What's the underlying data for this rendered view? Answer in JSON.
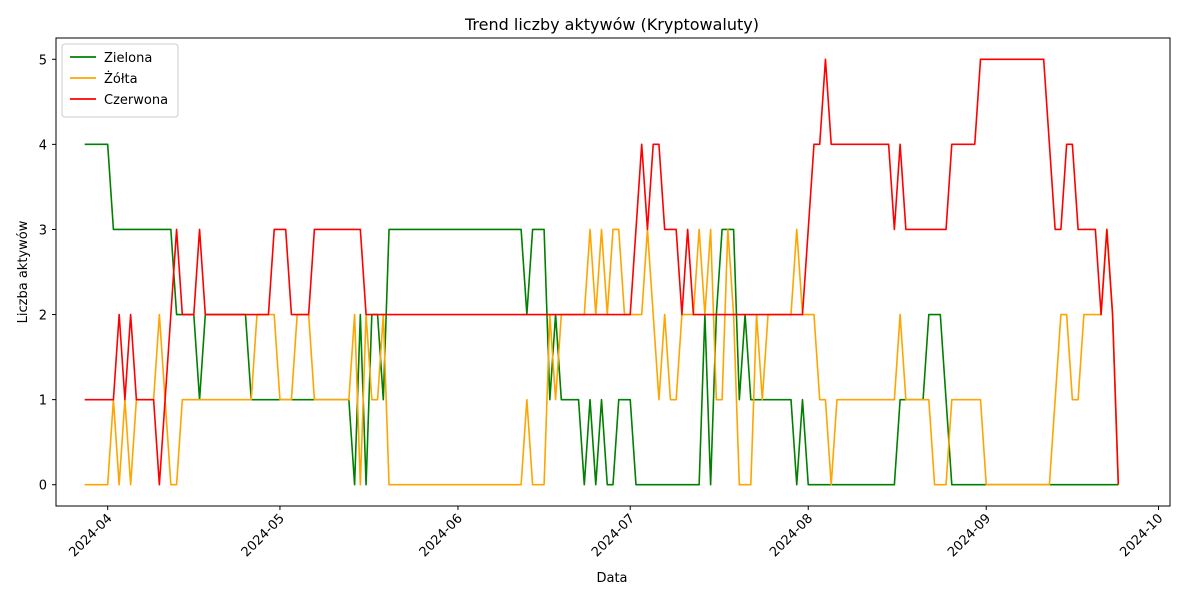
{
  "chart_data": {
    "type": "line",
    "title": "Trend liczby aktywów (Kryptowaluty)",
    "xlabel": "Data",
    "ylabel": "Liczba aktywów",
    "xlim": [
      "2024-03-23",
      "2024-10-03"
    ],
    "ylim": [
      -0.25,
      5.25
    ],
    "y_ticks": [
      0,
      1,
      2,
      3,
      4,
      5
    ],
    "x_ticks": [
      {
        "date": "2024-04-01",
        "label": "2024-04"
      },
      {
        "date": "2024-05-01",
        "label": "2024-05"
      },
      {
        "date": "2024-06-01",
        "label": "2024-06"
      },
      {
        "date": "2024-07-01",
        "label": "2024-07"
      },
      {
        "date": "2024-08-01",
        "label": "2024-08"
      },
      {
        "date": "2024-09-01",
        "label": "2024-09"
      },
      {
        "date": "2024-10-01",
        "label": "2024-10"
      }
    ],
    "grid": false,
    "legend_position": "top-left",
    "series": [
      {
        "name": "Zielona",
        "color": "#008000",
        "points": [
          [
            "2024-03-28",
            4
          ],
          [
            "2024-04-01",
            4
          ],
          [
            "2024-04-02",
            3
          ],
          [
            "2024-04-12",
            3
          ],
          [
            "2024-04-13",
            2
          ],
          [
            "2024-04-16",
            2
          ],
          [
            "2024-04-17",
            1
          ],
          [
            "2024-04-18",
            2
          ],
          [
            "2024-04-25",
            2
          ],
          [
            "2024-04-26",
            1
          ],
          [
            "2024-05-06",
            1
          ],
          [
            "2024-05-12",
            1
          ],
          [
            "2024-05-13",
            1
          ],
          [
            "2024-05-14",
            0
          ],
          [
            "2024-05-15",
            2
          ],
          [
            "2024-05-16",
            0
          ],
          [
            "2024-05-17",
            2
          ],
          [
            "2024-05-18",
            2
          ],
          [
            "2024-05-19",
            1
          ],
          [
            "2024-05-20",
            3
          ],
          [
            "2024-06-12",
            3
          ],
          [
            "2024-06-13",
            2
          ],
          [
            "2024-06-14",
            3
          ],
          [
            "2024-06-16",
            3
          ],
          [
            "2024-06-17",
            1
          ],
          [
            "2024-06-18",
            2
          ],
          [
            "2024-06-19",
            1
          ],
          [
            "2024-06-22",
            1
          ],
          [
            "2024-06-23",
            0
          ],
          [
            "2024-06-24",
            1
          ],
          [
            "2024-06-25",
            0
          ],
          [
            "2024-06-26",
            1
          ],
          [
            "2024-06-27",
            0
          ],
          [
            "2024-06-28",
            0
          ],
          [
            "2024-06-29",
            1
          ],
          [
            "2024-07-01",
            1
          ],
          [
            "2024-07-02",
            0
          ],
          [
            "2024-07-13",
            0
          ],
          [
            "2024-07-14",
            2
          ],
          [
            "2024-07-15",
            0
          ],
          [
            "2024-07-16",
            2
          ],
          [
            "2024-07-17",
            3
          ],
          [
            "2024-07-19",
            3
          ],
          [
            "2024-07-20",
            1
          ],
          [
            "2024-07-21",
            2
          ],
          [
            "2024-07-22",
            1
          ],
          [
            "2024-07-29",
            1
          ],
          [
            "2024-07-30",
            0
          ],
          [
            "2024-07-31",
            1
          ],
          [
            "2024-08-01",
            0
          ],
          [
            "2024-08-16",
            0
          ],
          [
            "2024-08-17",
            1
          ],
          [
            "2024-08-21",
            1
          ],
          [
            "2024-08-22",
            2
          ],
          [
            "2024-08-24",
            2
          ],
          [
            "2024-08-26",
            0
          ],
          [
            "2024-09-24",
            0
          ]
        ]
      },
      {
        "name": "Żółta",
        "color": "#ffa500",
        "points": [
          [
            "2024-03-28",
            0
          ],
          [
            "2024-04-01",
            0
          ],
          [
            "2024-04-02",
            1
          ],
          [
            "2024-04-03",
            0
          ],
          [
            "2024-04-04",
            1
          ],
          [
            "2024-04-05",
            0
          ],
          [
            "2024-04-06",
            1
          ],
          [
            "2024-04-09",
            1
          ],
          [
            "2024-04-10",
            2
          ],
          [
            "2024-04-11",
            1
          ],
          [
            "2024-04-12",
            0
          ],
          [
            "2024-04-13",
            0
          ],
          [
            "2024-04-14",
            1
          ],
          [
            "2024-04-26",
            1
          ],
          [
            "2024-04-27",
            2
          ],
          [
            "2024-04-30",
            2
          ],
          [
            "2024-05-01",
            1
          ],
          [
            "2024-05-03",
            1
          ],
          [
            "2024-05-04",
            2
          ],
          [
            "2024-05-06",
            2
          ],
          [
            "2024-05-07",
            1
          ],
          [
            "2024-05-13",
            1
          ],
          [
            "2024-05-14",
            2
          ],
          [
            "2024-05-15",
            0
          ],
          [
            "2024-05-16",
            2
          ],
          [
            "2024-05-17",
            1
          ],
          [
            "2024-05-18",
            1
          ],
          [
            "2024-05-19",
            2
          ],
          [
            "2024-05-20",
            0
          ],
          [
            "2024-06-12",
            0
          ],
          [
            "2024-06-13",
            1
          ],
          [
            "2024-06-14",
            0
          ],
          [
            "2024-06-16",
            0
          ],
          [
            "2024-06-17",
            2
          ],
          [
            "2024-06-18",
            1
          ],
          [
            "2024-06-19",
            2
          ],
          [
            "2024-06-23",
            2
          ],
          [
            "2024-06-24",
            3
          ],
          [
            "2024-06-25",
            2
          ],
          [
            "2024-06-26",
            3
          ],
          [
            "2024-06-27",
            2
          ],
          [
            "2024-06-28",
            3
          ],
          [
            "2024-06-29",
            3
          ],
          [
            "2024-06-30",
            2
          ],
          [
            "2024-07-03",
            2
          ],
          [
            "2024-07-04",
            3
          ],
          [
            "2024-07-06",
            1
          ],
          [
            "2024-07-07",
            2
          ],
          [
            "2024-07-08",
            1
          ],
          [
            "2024-07-09",
            1
          ],
          [
            "2024-07-10",
            2
          ],
          [
            "2024-07-12",
            2
          ],
          [
            "2024-07-13",
            3
          ],
          [
            "2024-07-14",
            2
          ],
          [
            "2024-07-15",
            3
          ],
          [
            "2024-07-16",
            1
          ],
          [
            "2024-07-17",
            1
          ],
          [
            "2024-07-18",
            3
          ],
          [
            "2024-07-19",
            2
          ],
          [
            "2024-07-20",
            0
          ],
          [
            "2024-07-22",
            0
          ],
          [
            "2024-07-23",
            2
          ],
          [
            "2024-07-24",
            1
          ],
          [
            "2024-07-25",
            2
          ],
          [
            "2024-07-29",
            2
          ],
          [
            "2024-07-30",
            3
          ],
          [
            "2024-07-31",
            2
          ],
          [
            "2024-08-02",
            2
          ],
          [
            "2024-08-03",
            1
          ],
          [
            "2024-08-04",
            1
          ],
          [
            "2024-08-05",
            0
          ],
          [
            "2024-08-06",
            1
          ],
          [
            "2024-08-16",
            1
          ],
          [
            "2024-08-17",
            2
          ],
          [
            "2024-08-18",
            1
          ],
          [
            "2024-08-22",
            1
          ],
          [
            "2024-08-23",
            0
          ],
          [
            "2024-08-25",
            0
          ],
          [
            "2024-08-26",
            1
          ],
          [
            "2024-08-31",
            1
          ],
          [
            "2024-09-01",
            0
          ],
          [
            "2024-09-12",
            0
          ],
          [
            "2024-09-13",
            1
          ],
          [
            "2024-09-14",
            2
          ],
          [
            "2024-09-15",
            2
          ],
          [
            "2024-09-16",
            1
          ],
          [
            "2024-09-17",
            1
          ],
          [
            "2024-09-18",
            2
          ],
          [
            "2024-09-21",
            2
          ],
          [
            "2024-09-22",
            3
          ],
          [
            "2024-09-23",
            2
          ],
          [
            "2024-09-24",
            0
          ]
        ]
      },
      {
        "name": "Czerwona",
        "color": "#ff0000",
        "points": [
          [
            "2024-03-28",
            1
          ],
          [
            "2024-04-01",
            1
          ],
          [
            "2024-04-02",
            1
          ],
          [
            "2024-04-03",
            2
          ],
          [
            "2024-04-04",
            1
          ],
          [
            "2024-04-05",
            2
          ],
          [
            "2024-04-06",
            1
          ],
          [
            "2024-04-09",
            1
          ],
          [
            "2024-04-10",
            0
          ],
          [
            "2024-04-11",
            1
          ],
          [
            "2024-04-12",
            2
          ],
          [
            "2024-04-13",
            3
          ],
          [
            "2024-04-14",
            2
          ],
          [
            "2024-04-16",
            2
          ],
          [
            "2024-04-17",
            3
          ],
          [
            "2024-04-18",
            2
          ],
          [
            "2024-04-29",
            2
          ],
          [
            "2024-04-30",
            3
          ],
          [
            "2024-05-02",
            3
          ],
          [
            "2024-05-03",
            2
          ],
          [
            "2024-05-06",
            2
          ],
          [
            "2024-05-07",
            3
          ],
          [
            "2024-05-15",
            3
          ],
          [
            "2024-05-16",
            2
          ],
          [
            "2024-07-01",
            2
          ],
          [
            "2024-07-02",
            3
          ],
          [
            "2024-07-03",
            4
          ],
          [
            "2024-07-04",
            3
          ],
          [
            "2024-07-05",
            4
          ],
          [
            "2024-07-06",
            4
          ],
          [
            "2024-07-07",
            3
          ],
          [
            "2024-07-09",
            3
          ],
          [
            "2024-07-10",
            2
          ],
          [
            "2024-07-11",
            3
          ],
          [
            "2024-07-12",
            2
          ],
          [
            "2024-07-31",
            2
          ],
          [
            "2024-08-01",
            3
          ],
          [
            "2024-08-02",
            4
          ],
          [
            "2024-08-03",
            4
          ],
          [
            "2024-08-04",
            5
          ],
          [
            "2024-08-05",
            4
          ],
          [
            "2024-08-15",
            4
          ],
          [
            "2024-08-16",
            3
          ],
          [
            "2024-08-17",
            4
          ],
          [
            "2024-08-18",
            3
          ],
          [
            "2024-08-25",
            3
          ],
          [
            "2024-08-26",
            4
          ],
          [
            "2024-08-30",
            4
          ],
          [
            "2024-08-31",
            5
          ],
          [
            "2024-09-11",
            5
          ],
          [
            "2024-09-12",
            4
          ],
          [
            "2024-09-13",
            3
          ],
          [
            "2024-09-14",
            3
          ],
          [
            "2024-09-15",
            4
          ],
          [
            "2024-09-16",
            4
          ],
          [
            "2024-09-17",
            3
          ],
          [
            "2024-09-20",
            3
          ],
          [
            "2024-09-21",
            2
          ],
          [
            "2024-09-22",
            3
          ],
          [
            "2024-09-23",
            2
          ],
          [
            "2024-09-24",
            0
          ]
        ]
      }
    ]
  }
}
